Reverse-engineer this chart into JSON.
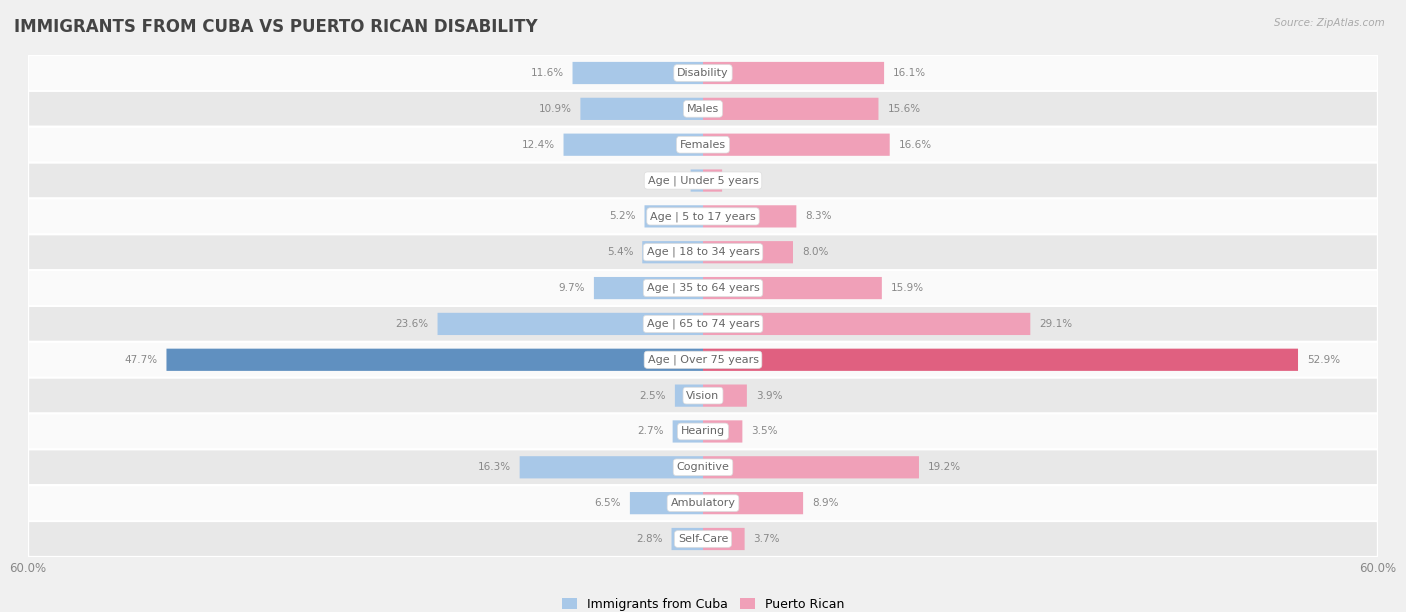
{
  "title": "IMMIGRANTS FROM CUBA VS PUERTO RICAN DISABILITY",
  "source": "Source: ZipAtlas.com",
  "categories": [
    "Disability",
    "Males",
    "Females",
    "Age | Under 5 years",
    "Age | 5 to 17 years",
    "Age | 18 to 34 years",
    "Age | 35 to 64 years",
    "Age | 65 to 74 years",
    "Age | Over 75 years",
    "Vision",
    "Hearing",
    "Cognitive",
    "Ambulatory",
    "Self-Care"
  ],
  "cuba_values": [
    11.6,
    10.9,
    12.4,
    1.1,
    5.2,
    5.4,
    9.7,
    23.6,
    47.7,
    2.5,
    2.7,
    16.3,
    6.5,
    2.8
  ],
  "pr_values": [
    16.1,
    15.6,
    16.6,
    1.7,
    8.3,
    8.0,
    15.9,
    29.1,
    52.9,
    3.9,
    3.5,
    19.2,
    8.9,
    3.7
  ],
  "cuba_color": "#a8c8e8",
  "pr_color": "#f0a0b8",
  "cuba_color_bold": "#6090c0",
  "pr_color_bold": "#e06080",
  "axis_max": 60.0,
  "bg_color": "#f0f0f0",
  "row_bg_light": "#fafafa",
  "row_bg_dark": "#e8e8e8",
  "legend_cuba": "Immigrants from Cuba",
  "legend_pr": "Puerto Rican",
  "title_fontsize": 12,
  "label_fontsize": 8,
  "value_fontsize": 7.5,
  "legend_fontsize": 9
}
